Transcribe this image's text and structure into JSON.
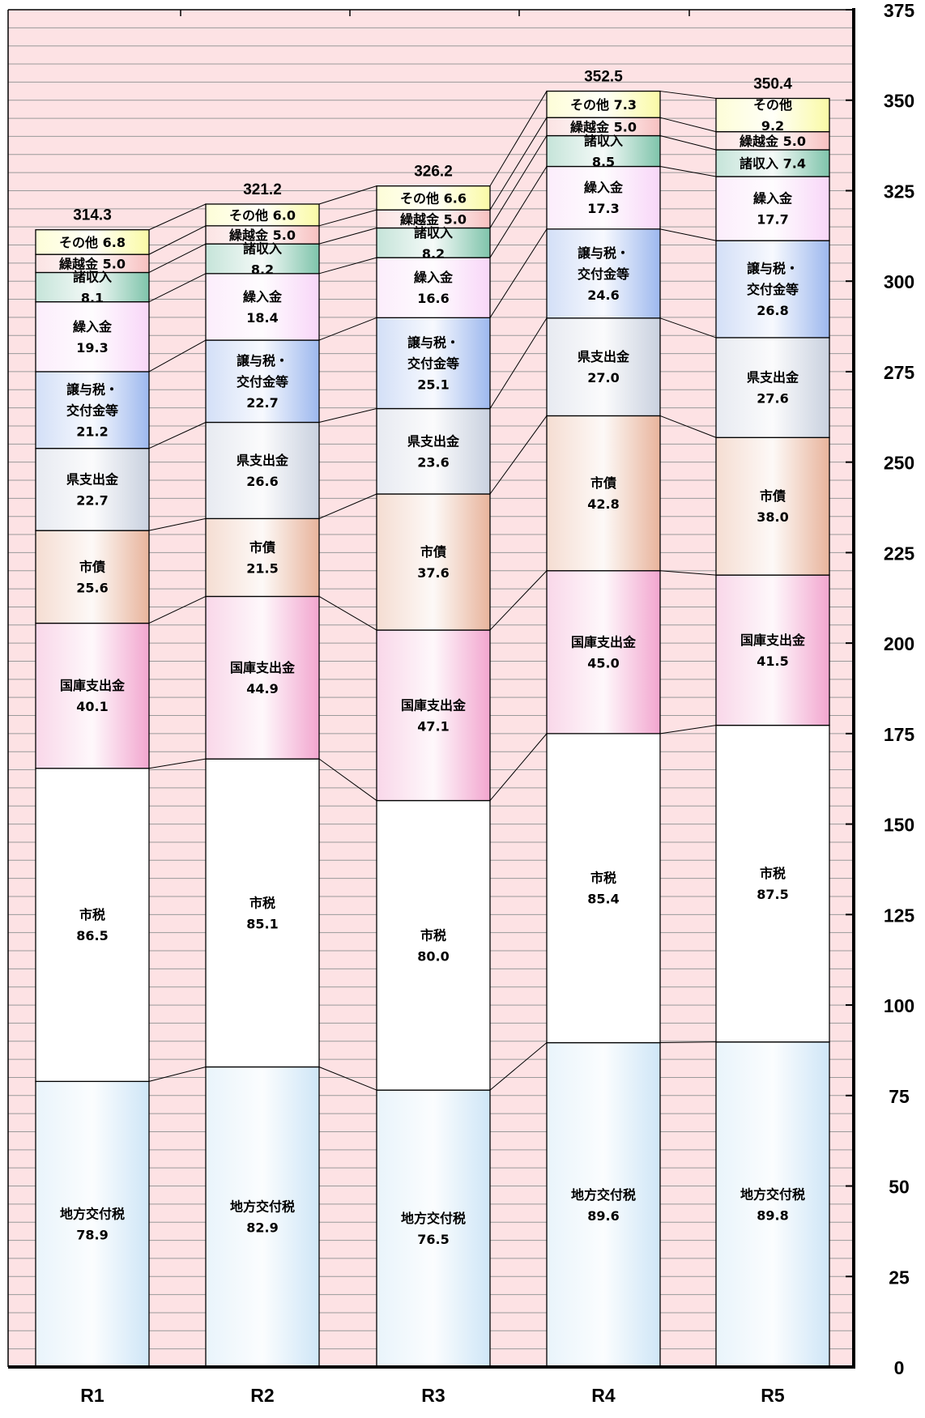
{
  "chart_data": {
    "type": "bar",
    "stacked": true,
    "categories": [
      "R1",
      "R2",
      "R3",
      "R4",
      "R5"
    ],
    "totals": [
      "314.3",
      "321.2",
      "326.2",
      "352.5",
      "350.4"
    ],
    "ylim": [
      0,
      375
    ],
    "yticks": [
      "0",
      "25",
      "50",
      "75",
      "100",
      "125",
      "150",
      "175",
      "200",
      "225",
      "250",
      "275",
      "300",
      "325",
      "350",
      "375"
    ],
    "grid": true,
    "series": [
      {
        "name": "地方交付税",
        "lines": [
          "地方交付税"
        ],
        "color": "#cfe6f7",
        "values": [
          78.9,
          82.9,
          76.5,
          89.6,
          89.8
        ],
        "labels": [
          "78.9",
          "82.9",
          "76.5",
          "89.6",
          "89.8"
        ]
      },
      {
        "name": "市税",
        "lines": [
          "市税"
        ],
        "color": "#ffffff",
        "values": [
          86.5,
          85.1,
          80.0,
          85.4,
          87.5
        ],
        "labels": [
          "86.5",
          "85.1",
          "80.0",
          "85.4",
          "87.5"
        ]
      },
      {
        "name": "国庫支出金",
        "lines": [
          "国庫支出金"
        ],
        "color": "#f2a6cf",
        "values": [
          40.1,
          44.9,
          47.1,
          45.0,
          41.5
        ],
        "labels": [
          "40.1",
          "44.9",
          "47.1",
          "45.0",
          "41.5"
        ]
      },
      {
        "name": "市債",
        "lines": [
          "市債"
        ],
        "color": "#e8b49c",
        "values": [
          25.6,
          21.5,
          37.6,
          42.8,
          38.0
        ],
        "labels": [
          "25.6",
          "21.5",
          "37.6",
          "42.8",
          "38.0"
        ]
      },
      {
        "name": "県支出金",
        "lines": [
          "県支出金"
        ],
        "color": "#c9d1df",
        "values": [
          22.7,
          26.6,
          23.6,
          27.0,
          27.6
        ],
        "labels": [
          "22.7",
          "26.6",
          "23.6",
          "27.0",
          "27.6"
        ]
      },
      {
        "name": "譲与税・交付金等",
        "lines": [
          "譲与税・",
          "交付金等"
        ],
        "color": "#9db8ee",
        "values": [
          21.2,
          22.7,
          25.1,
          24.6,
          26.8
        ],
        "labels": [
          "21.2",
          "22.7",
          "25.1",
          "24.6",
          "26.8"
        ]
      },
      {
        "name": "繰入金",
        "lines": [
          "繰入金"
        ],
        "color": "#f8d6f8",
        "values": [
          19.3,
          18.4,
          16.6,
          17.3,
          17.7
        ],
        "labels": [
          "19.3",
          "18.4",
          "16.6",
          "17.3",
          "17.7"
        ]
      },
      {
        "name": "諸収入",
        "lines": [
          "諸収入"
        ],
        "color": "#7fc4ab",
        "values": [
          8.1,
          8.2,
          8.2,
          8.5,
          7.4
        ],
        "labels": [
          "8.1",
          "8.2",
          "8.2",
          "8.5",
          "7.4"
        ]
      },
      {
        "name": "繰越金",
        "lines": [
          "繰越金"
        ],
        "color": "#f7c0c0",
        "values": [
          5.0,
          5.0,
          5.0,
          5.0,
          5.0
        ],
        "labels": [
          "5.0",
          "5.0",
          "5.0",
          "5.0",
          "5.0"
        ]
      },
      {
        "name": "その他",
        "lines": [
          "その他"
        ],
        "color": "#fafaa6",
        "values": [
          6.8,
          6.0,
          6.6,
          7.3,
          9.2
        ],
        "labels": [
          "6.8",
          "6.0",
          "6.6",
          "7.3",
          "9.2"
        ]
      }
    ],
    "colors": {
      "plot_background": "#fde2e4",
      "gridline": "#9a9a9a",
      "frame": "#000000"
    }
  }
}
